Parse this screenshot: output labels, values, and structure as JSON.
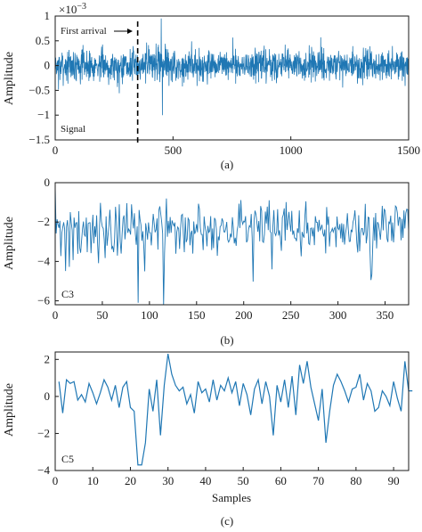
{
  "colors": {
    "series": "#1f77b4",
    "axis": "#1a1a1a",
    "marker": "#000000"
  },
  "chart_data": [
    {
      "panel": "(a)",
      "type": "line",
      "ylabel": "Amplitude",
      "xlabel": "",
      "exponent_label": "×10⁻³",
      "exponent_base": "×10",
      "exponent_power": "−3",
      "xlim": [
        0,
        1500
      ],
      "ylim": [
        -1.5,
        1
      ],
      "xticks": [
        0,
        500,
        1000,
        1500
      ],
      "yticks": [
        1,
        0.5,
        0,
        -0.5,
        -1,
        -1.5
      ],
      "ytick_labels": [
        "1",
        "0.5",
        "0",
        "−0.5",
        "−1",
        "−1.5"
      ],
      "annotations": {
        "first_arrival": "First arrival",
        "signal": "Signal",
        "marker_x": 350
      },
      "n_points": 1500,
      "noise_amplitude": 0.22,
      "burst": {
        "start": 360,
        "end": 500,
        "amplitude": 0.5
      },
      "peaks": [
        {
          "x": 450,
          "y": 0.95
        },
        {
          "x": 455,
          "y": -1.0
        }
      ],
      "grid": false
    },
    {
      "panel": "(b)",
      "type": "line",
      "ylabel": "Amplitude",
      "xlabel": "",
      "label": "C3",
      "xlim": [
        0,
        375
      ],
      "ylim": [
        -6.2,
        0
      ],
      "xticks": [
        0,
        50,
        100,
        150,
        200,
        250,
        300,
        350
      ],
      "yticks": [
        0,
        -2,
        -4,
        -6
      ],
      "ytick_labels": [
        "0",
        "−2",
        "−4",
        "−6"
      ],
      "n_points": 376,
      "mean": -2.3,
      "spread": 0.8,
      "minima": [
        {
          "x": 88,
          "y": -6.1
        },
        {
          "x": 115,
          "y": -6.2
        },
        {
          "x": 95,
          "y": -4.5
        },
        {
          "x": 230,
          "y": -4.4
        }
      ],
      "grid": false
    },
    {
      "panel": "(c)",
      "type": "line",
      "ylabel": "Amplitude",
      "xlabel": "Samples",
      "label": "C5",
      "xlim": [
        0,
        94
      ],
      "ylim": [
        -4,
        2.4
      ],
      "xticks": [
        0,
        10,
        20,
        30,
        40,
        50,
        60,
        70,
        80,
        90
      ],
      "yticks": [
        2,
        0,
        -2,
        -4
      ],
      "ytick_labels": [
        "2",
        "0",
        "−2",
        "−4"
      ],
      "values": [
        0.8,
        -0.9,
        0.9,
        0.7,
        0.8,
        -0.2,
        0.1,
        -0.3,
        0.7,
        0.2,
        -0.4,
        0.2,
        0.9,
        0.5,
        -0.2,
        0.6,
        -0.6,
        0.5,
        0.8,
        -0.6,
        -0.8,
        -3.7,
        -3.7,
        -2.5,
        0.4,
        -0.8,
        0.9,
        -2.1,
        0.6,
        2.3,
        1.2,
        0.6,
        0.3,
        0.5,
        -0.4,
        0.1,
        -0.9,
        0.8,
        0.2,
        0.4,
        -0.3,
        0.9,
        -0.2,
        0.6,
        0.3,
        1.0,
        0.2,
        0.8,
        -0.5,
        0.7,
        0.1,
        -1.0,
        0.4,
        0.9,
        -0.4,
        0.8,
        0.0,
        -2.1,
        0.6,
        -0.3,
        0.9,
        -0.6,
        1.1,
        -1.0,
        1.7,
        0.7,
        1.9,
        0.5,
        -0.4,
        -1.3,
        0.4,
        -2.5,
        -0.8,
        0.6,
        1.2,
        0.8,
        0.3,
        -0.3,
        0.4,
        0.5,
        1.2,
        -0.2,
        0.7,
        0.3,
        -0.8,
        -0.6,
        0.3,
        0.0,
        -0.5,
        0.8,
        -0.1,
        -0.8,
        1.9,
        0.3,
        0.3
      ],
      "grid": false
    }
  ]
}
